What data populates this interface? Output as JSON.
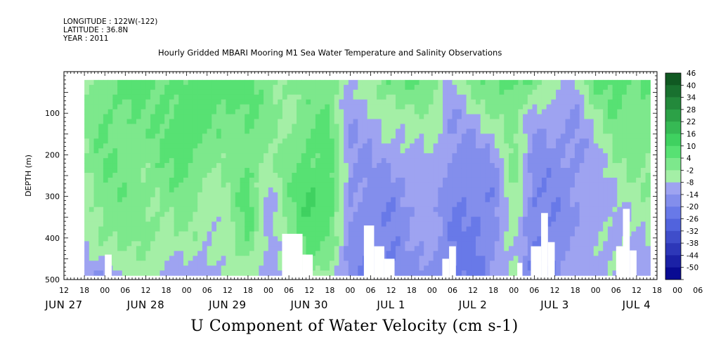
{
  "header": {
    "longitude": "LONGITUDE : 122W(-122)",
    "latitude": "LATITUDE : 36.8N",
    "year": "YEAR : 2011",
    "title": "Hourly Gridded MBARI Mooring M1 Sea Water Temperature and Salinity Observations"
  },
  "caption": "U Component of Water Velocity (cm s-1)",
  "chart_data": {
    "type": "heatmap",
    "title": "Hourly Gridded MBARI Mooring M1 Sea Water Temperature and Salinity Observations",
    "xlabel": "",
    "ylabel": "DEPTH (m)",
    "variable": "U Component of Water Velocity (cm s-1)",
    "x_range": [
      "2011-06-27T12:00",
      "2011-07-04T18:00"
    ],
    "data_x_range": [
      "2011-06-27T18:00",
      "2011-07-04T16:00"
    ],
    "ylim": [
      500,
      0
    ],
    "y_reversed": true,
    "y_ticks": [
      100,
      200,
      300,
      400,
      500
    ],
    "data_depth_range": [
      20,
      490
    ],
    "hour_tick_labels": [
      "12",
      "18",
      "00",
      "06",
      "12",
      "18",
      "00",
      "06",
      "12",
      "18",
      "00",
      "06",
      "12",
      "18",
      "00",
      "06",
      "12",
      "18",
      "00",
      "06",
      "12",
      "18",
      "00",
      "06",
      "12",
      "18",
      "00",
      "06",
      "12",
      "18",
      "00",
      "06"
    ],
    "day_labels": [
      "JUN 27",
      "JUN 28",
      "JUN 29",
      "JUN 30",
      "JUL 1",
      "JUL 2",
      "JUL 3",
      "JUL 4"
    ],
    "colorbar_levels": [
      46,
      40,
      34,
      28,
      22,
      16,
      10,
      4,
      -2,
      -8,
      -14,
      -20,
      -26,
      -32,
      -38,
      -44,
      -50
    ],
    "colorbar_range": [
      -50,
      52
    ],
    "colors": {
      "positive_light": "#aaf0aa",
      "positive_mid": "#44dd66",
      "positive_dark": "#0b4d1c",
      "negative_light": "#b4b4f4",
      "negative_mid": "#5a6ee6",
      "negative_dark": "#00008a"
    },
    "columns": [
      {
        "time": "2011-06-27T18:00",
        "profile": [
          4,
          6,
          4,
          2,
          -2,
          -8
        ]
      },
      {
        "time": "2011-06-28T00:00",
        "profile": [
          8,
          10,
          10,
          8,
          6,
          -10
        ]
      },
      {
        "time": "2011-06-28T06:00",
        "profile": [
          12,
          10,
          8,
          8,
          6,
          2
        ]
      },
      {
        "time": "2011-06-28T12:00",
        "profile": [
          12,
          8,
          6,
          6,
          4,
          0
        ]
      },
      {
        "time": "2011-06-28T18:00",
        "profile": [
          10,
          12,
          10,
          6,
          2,
          -6
        ]
      },
      {
        "time": "2011-06-29T00:00",
        "profile": [
          10,
          14,
          14,
          8,
          4,
          -4
        ]
      },
      {
        "time": "2011-06-29T06:00",
        "profile": [
          14,
          12,
          6,
          2,
          -2,
          -6
        ]
      },
      {
        "time": "2011-06-29T12:00",
        "profile": [
          16,
          10,
          4,
          2,
          2,
          -2
        ]
      },
      {
        "time": "2011-06-29T18:00",
        "profile": [
          12,
          10,
          10,
          14,
          10,
          4
        ]
      },
      {
        "time": "2011-06-30T00:00",
        "profile": [
          8,
          6,
          2,
          -4,
          -6,
          -8
        ]
      },
      {
        "time": "2011-06-30T06:00",
        "profile": [
          4,
          2,
          6,
          8,
          6,
          -4
        ]
      },
      {
        "time": "2011-06-30T12:00",
        "profile": [
          6,
          8,
          12,
          16,
          14,
          6
        ]
      },
      {
        "time": "2011-06-30T18:00",
        "profile": [
          8,
          10,
          12,
          16,
          10,
          -2
        ]
      },
      {
        "time": "2011-07-01T00:00",
        "profile": [
          -4,
          -6,
          -8,
          -10,
          -8,
          -10
        ]
      },
      {
        "time": "2011-07-01T06:00",
        "profile": [
          2,
          -4,
          -8,
          -10,
          -12,
          -14
        ]
      },
      {
        "time": "2011-07-01T12:00",
        "profile": [
          12,
          2,
          -6,
          -12,
          -14,
          -16
        ]
      },
      {
        "time": "2011-07-01T18:00",
        "profile": [
          10,
          4,
          -4,
          -8,
          -6,
          -8
        ]
      },
      {
        "time": "2011-07-02T00:00",
        "profile": [
          6,
          2,
          -2,
          -4,
          -6,
          -10
        ]
      },
      {
        "time": "2011-07-02T06:00",
        "profile": [
          -2,
          -8,
          -10,
          -12,
          -14,
          -14
        ]
      },
      {
        "time": "2011-07-02T12:00",
        "profile": [
          8,
          -2,
          -10,
          -14,
          -16,
          -16
        ]
      },
      {
        "time": "2011-07-02T18:00",
        "profile": [
          10,
          4,
          -8,
          -12,
          -10,
          -8
        ]
      },
      {
        "time": "2011-07-03T00:00",
        "profile": [
          14,
          8,
          6,
          4,
          2,
          -2
        ]
      },
      {
        "time": "2011-07-03T06:00",
        "profile": [
          6,
          -4,
          -10,
          -14,
          -14,
          -14
        ]
      },
      {
        "time": "2011-07-03T12:00",
        "profile": [
          2,
          -6,
          -10,
          -12,
          -14,
          -14
        ]
      },
      {
        "time": "2011-07-03T18:00",
        "profile": [
          -2,
          -8,
          -10,
          -8,
          -6,
          -4
        ]
      },
      {
        "time": "2011-07-04T00:00",
        "profile": [
          10,
          2,
          -4,
          -6,
          -4,
          -2
        ]
      },
      {
        "time": "2011-07-04T06:00",
        "profile": [
          14,
          10,
          4,
          -2,
          -4,
          -4
        ]
      },
      {
        "time": "2011-07-04T12:00",
        "profile": [
          10,
          8,
          6,
          2,
          -2,
          -4
        ]
      }
    ],
    "profile_depths": [
      20,
      100,
      200,
      300,
      400,
      490
    ]
  }
}
